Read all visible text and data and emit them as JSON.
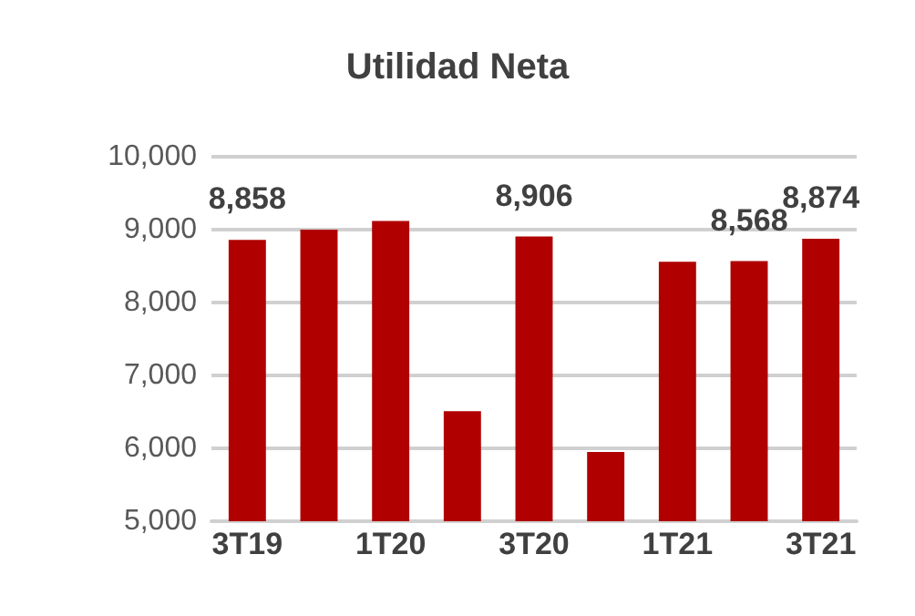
{
  "chart_data": {
    "type": "bar",
    "title": "Utilidad Neta",
    "categories": [
      "3T19",
      null,
      "1T20",
      null,
      "3T20",
      null,
      "1T21",
      null,
      "3T21"
    ],
    "values": [
      8858,
      9000,
      9120,
      6510,
      8906,
      5950,
      8560,
      8568,
      8874
    ],
    "value_labels": [
      "8,858",
      null,
      null,
      null,
      "8,906",
      null,
      null,
      "8,568",
      "8,874"
    ],
    "color": "#b00000",
    "ylim": [
      5000,
      10000
    ],
    "yticks": [
      {
        "value": 5000,
        "label": "5,000"
      },
      {
        "value": 6000,
        "label": "6,000"
      },
      {
        "value": 7000,
        "label": "7,000"
      },
      {
        "value": 8000,
        "label": "8,000"
      },
      {
        "value": 9000,
        "label": "9,000"
      },
      {
        "value": 10000,
        "label": "10,000"
      }
    ],
    "grid": "y"
  }
}
